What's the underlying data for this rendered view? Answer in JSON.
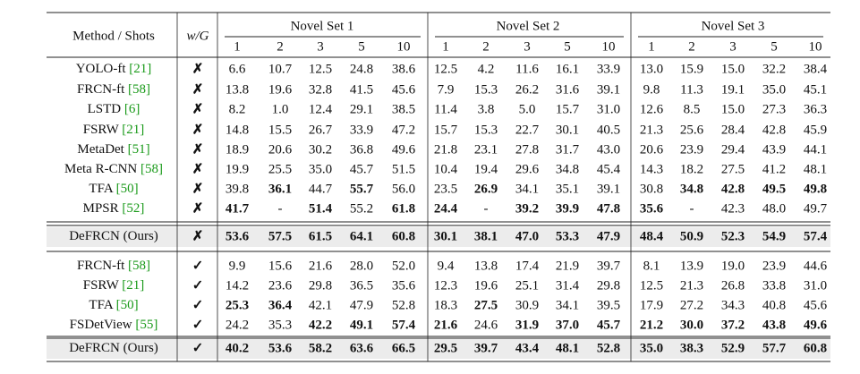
{
  "table": {
    "header": {
      "method": "Method / Shots",
      "wg": "w/G",
      "sets": [
        "Novel Set 1",
        "Novel Set 2",
        "Novel Set 3"
      ],
      "shots": [
        "1",
        "2",
        "3",
        "5",
        "10"
      ]
    },
    "cite_color": "#1a9a1a",
    "row_highlight": "#ececec",
    "groups": [
      {
        "rows": [
          {
            "method": "YOLO-ft",
            "ref": "[21]",
            "wg": "✗",
            "values": [
              "6.6",
              "10.7",
              "12.5",
              "24.8",
              "38.6",
              "12.5",
              "4.2",
              "11.6",
              "16.1",
              "33.9",
              "13.0",
              "15.9",
              "15.0",
              "32.2",
              "38.4"
            ]
          },
          {
            "method": "FRCN-ft",
            "ref": "[58]",
            "wg": "✗",
            "values": [
              "13.8",
              "19.6",
              "32.8",
              "41.5",
              "45.6",
              "7.9",
              "15.3",
              "26.2",
              "31.6",
              "39.1",
              "9.8",
              "11.3",
              "19.1",
              "35.0",
              "45.1"
            ]
          },
          {
            "method": "LSTD",
            "ref": "[6]",
            "wg": "✗",
            "values": [
              "8.2",
              "1.0",
              "12.4",
              "29.1",
              "38.5",
              "11.4",
              "3.8",
              "5.0",
              "15.7",
              "31.0",
              "12.6",
              "8.5",
              "15.0",
              "27.3",
              "36.3"
            ]
          },
          {
            "method": "FSRW",
            "ref": "[21]",
            "wg": "✗",
            "values": [
              "14.8",
              "15.5",
              "26.7",
              "33.9",
              "47.2",
              "15.7",
              "15.3",
              "22.7",
              "30.1",
              "40.5",
              "21.3",
              "25.6",
              "28.4",
              "42.8",
              "45.9"
            ]
          },
          {
            "method": "MetaDet",
            "ref": "[51]",
            "wg": "✗",
            "values": [
              "18.9",
              "20.6",
              "30.2",
              "36.8",
              "49.6",
              "21.8",
              "23.1",
              "27.8",
              "31.7",
              "43.0",
              "20.6",
              "23.9",
              "29.4",
              "43.9",
              "44.1"
            ]
          },
          {
            "method": "Meta R-CNN",
            "ref": "[58]",
            "wg": "✗",
            "values": [
              "19.9",
              "25.5",
              "35.0",
              "45.7",
              "51.5",
              "10.4",
              "19.4",
              "29.6",
              "34.8",
              "45.4",
              "14.3",
              "18.2",
              "27.5",
              "41.2",
              "48.1"
            ]
          },
          {
            "method": "TFA",
            "ref": "[50]",
            "wg": "✗",
            "values": [
              "39.8",
              "36.1",
              "44.7",
              "55.7",
              "56.0",
              "23.5",
              "26.9",
              "34.1",
              "35.1",
              "39.1",
              "30.8",
              "34.8",
              "42.8",
              "49.5",
              "49.8"
            ],
            "colors": [
              null,
              "#1e1edc",
              null,
              "#1e1edc",
              null,
              null,
              "#1e1edc",
              null,
              null,
              null,
              null,
              "#1e1edc",
              "#1e1edc",
              "#1e1edc",
              "#1e1edc"
            ]
          },
          {
            "method": "MPSR",
            "ref": "[52]",
            "wg": "✗",
            "values": [
              "41.7",
              "-",
              "51.4",
              "55.2",
              "61.8",
              "24.4",
              "-",
              "39.2",
              "39.9",
              "47.8",
              "35.6",
              "-",
              "42.3",
              "48.0",
              "49.7"
            ],
            "colors": [
              "#1e1edc",
              null,
              "#1e1edc",
              null,
              "#e01616",
              "#1e1edc",
              null,
              "#1e1edc",
              "#1e1edc",
              "#1e1edc",
              "#1e1edc",
              null,
              null,
              null,
              null
            ]
          }
        ],
        "ours": {
          "method": "DeFRCN (Ours)",
          "wg": "✗",
          "values": [
            "53.6",
            "57.5",
            "61.5",
            "64.1",
            "60.8",
            "30.1",
            "38.1",
            "47.0",
            "53.3",
            "47.9",
            "48.4",
            "50.9",
            "52.3",
            "54.9",
            "57.4"
          ],
          "colors": [
            "#e01616",
            "#e01616",
            "#e01616",
            "#e01616",
            "#1e1edc",
            "#e01616",
            "#e01616",
            "#e01616",
            "#e01616",
            "#e01616",
            "#e01616",
            "#e01616",
            "#e01616",
            "#e01616",
            "#e01616"
          ]
        }
      },
      {
        "rows": [
          {
            "method": "FRCN-ft",
            "ref": "[58]",
            "wg": "✓",
            "values": [
              "9.9",
              "15.6",
              "21.6",
              "28.0",
              "52.0",
              "9.4",
              "13.8",
              "17.4",
              "21.9",
              "39.7",
              "8.1",
              "13.9",
              "19.0",
              "23.9",
              "44.6"
            ]
          },
          {
            "method": "FSRW",
            "ref": "[21]",
            "wg": "✓",
            "values": [
              "14.2",
              "23.6",
              "29.8",
              "36.5",
              "35.6",
              "12.3",
              "19.6",
              "25.1",
              "31.4",
              "29.8",
              "12.5",
              "21.3",
              "26.8",
              "33.8",
              "31.0"
            ]
          },
          {
            "method": "TFA",
            "ref": "[50]",
            "wg": "✓",
            "values": [
              "25.3",
              "36.4",
              "42.1",
              "47.9",
              "52.8",
              "18.3",
              "27.5",
              "30.9",
              "34.1",
              "39.5",
              "17.9",
              "27.2",
              "34.3",
              "40.8",
              "45.6"
            ],
            "colors": [
              "#1e1edc",
              "#1e1edc",
              null,
              null,
              null,
              null,
              "#1e1edc",
              null,
              null,
              null,
              null,
              null,
              null,
              null,
              null
            ]
          },
          {
            "method": "FSDetView",
            "ref": "[55]",
            "wg": "✓",
            "values": [
              "24.2",
              "35.3",
              "42.2",
              "49.1",
              "57.4",
              "21.6",
              "24.6",
              "31.9",
              "37.0",
              "45.7",
              "21.2",
              "30.0",
              "37.2",
              "43.8",
              "49.6"
            ],
            "colors": [
              null,
              null,
              "#1e1edc",
              "#1e1edc",
              "#1e1edc",
              "#1e1edc",
              null,
              "#1e1edc",
              "#1e1edc",
              "#1e1edc",
              "#1e1edc",
              "#1e1edc",
              "#1e1edc",
              "#1e1edc",
              "#1e1edc"
            ]
          }
        ],
        "ours": {
          "method": "DeFRCN (Ours)",
          "wg": "✓",
          "values": [
            "40.2",
            "53.6",
            "58.2",
            "63.6",
            "66.5",
            "29.5",
            "39.7",
            "43.4",
            "48.1",
            "52.8",
            "35.0",
            "38.3",
            "52.9",
            "57.7",
            "60.8"
          ],
          "colors": [
            "#e01616",
            "#e01616",
            "#e01616",
            "#e01616",
            "#e01616",
            "#e01616",
            "#e01616",
            "#e01616",
            "#e01616",
            "#e01616",
            "#e01616",
            "#e01616",
            "#e01616",
            "#e01616",
            "#e01616"
          ]
        }
      }
    ]
  }
}
